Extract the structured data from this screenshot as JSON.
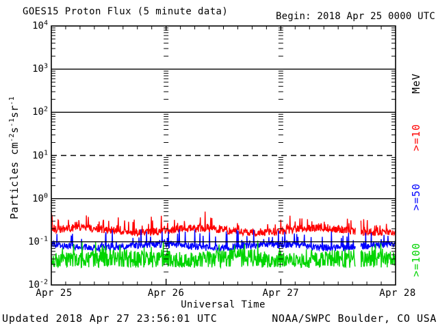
{
  "header": {
    "title": "GOES15 Proton Flux (5 minute data)",
    "begin_label": "Begin: 2018 Apr 25 0000 UTC"
  },
  "footer": {
    "updated": "Updated 2018 Apr 27 23:56:01 UTC",
    "source": "NOAA/SWPC Boulder, CO USA"
  },
  "chart_data": {
    "type": "line",
    "title": "GOES15 Proton Flux (5 minute data)",
    "subtitle": "Begin: 2018 Apr 25 0000 UTC",
    "xlabel": "Universal Time",
    "ylabel_segments": [
      {
        "text": "Particles cm"
      },
      {
        "sup": "-2"
      },
      {
        "text": "s"
      },
      {
        "sup": "-1"
      },
      {
        "text": "sr"
      },
      {
        "sup": "-1"
      }
    ],
    "y_scale": "log",
    "ylim": [
      0.01,
      10000
    ],
    "y_tick_exponents": [
      4,
      3,
      2,
      1,
      0,
      -1,
      -2
    ],
    "x_tick_labels": [
      "Apr 25",
      "Apr 26",
      "Apr 27",
      "Apr 28"
    ],
    "x_range_hours": 72,
    "x_minor_tick_hours": 3,
    "grid": {
      "solid_line_exponents": [
        3,
        2,
        0,
        -1
      ],
      "dashed_line_exponents": [
        1
      ],
      "day_boundary_tick_columns": true
    },
    "legend_title": "MeV",
    "legend_position": "right",
    "sample_interval_minutes": 5,
    "points": 865,
    "data_gap_frac": [
      0.884,
      0.899
    ],
    "event_threshold": {
      "flux": 10,
      "line_style": "dashed"
    },
    "series": [
      {
        "name": ">=10",
        "color": "#FF0000",
        "units": "MeV",
        "typical_flux_range": [
          0.12,
          0.5
        ],
        "median_flux": 0.18,
        "seed": 1013,
        "base_log10": -0.73,
        "wobble_log10": 0.05,
        "jitter_log10": 0.09,
        "spike_prob": 0.12,
        "spike_log10": 0.32,
        "clamp_log10": [
          -0.92,
          -0.3
        ],
        "start_spike_log10": -0.33
      },
      {
        "name": ">=50",
        "color": "#0000FF",
        "units": "MeV",
        "typical_flux_range": [
          0.055,
          0.25
        ],
        "median_flux": 0.08,
        "seed": 2027,
        "base_log10": -1.1,
        "wobble_log10": 0.04,
        "jitter_log10": 0.08,
        "spike_prob": 0.1,
        "spike_log10": 0.38,
        "clamp_log10": [
          -1.26,
          -0.62
        ],
        "start_spike_log10": null
      },
      {
        "name": ">=100",
        "color": "#00D400",
        "units": "MeV",
        "typical_flux_range": [
          0.024,
          0.11
        ],
        "median_flux": 0.04,
        "seed": 3041,
        "base_log10": -1.37,
        "wobble_log10": 0.05,
        "jitter_log10": 0.16,
        "spike_prob": 0.1,
        "spike_log10": 0.3,
        "floor_prob": 0.18,
        "floor_log10": -1.6,
        "clamp_log10": [
          -1.63,
          -0.97
        ],
        "start_spike_log10": null
      }
    ]
  }
}
